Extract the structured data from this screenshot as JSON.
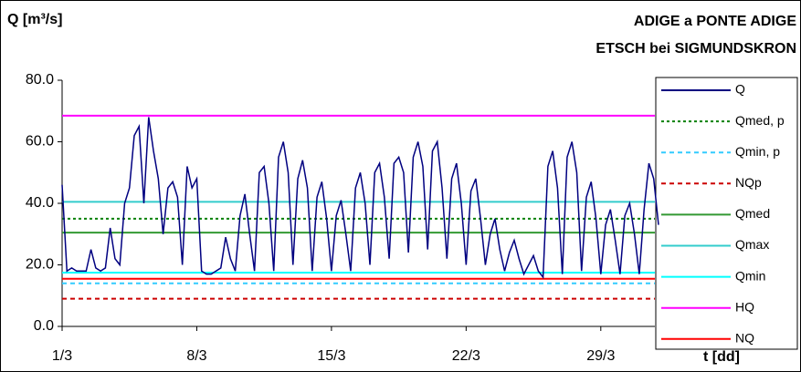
{
  "chart_data": {
    "type": "line",
    "title": "Q [m³/s]",
    "subtitle": [
      "ADIGE a PONTE ADIGE",
      "ETSCH bei SIGMUNDSKRON"
    ],
    "x_label": "t [dd]",
    "xlim": [
      1,
      32
    ],
    "xticks": [
      {
        "value": 1,
        "label": "1/3"
      },
      {
        "value": 8,
        "label": "8/3"
      },
      {
        "value": 15,
        "label": "15/3"
      },
      {
        "value": 22,
        "label": "22/3"
      },
      {
        "value": 29,
        "label": "29/3"
      }
    ],
    "ylim": [
      0,
      80
    ],
    "yticks": [
      {
        "value": 0,
        "label": "0.0"
      },
      {
        "value": 20,
        "label": "20.0"
      },
      {
        "value": 40,
        "label": "40.0"
      },
      {
        "value": 60,
        "label": "60.0"
      },
      {
        "value": 80,
        "label": "80.0"
      }
    ],
    "grid": false,
    "x": [
      1,
      1.25,
      1.5,
      1.75,
      2,
      2.25,
      2.5,
      2.75,
      3,
      3.25,
      3.5,
      3.75,
      4,
      4.25,
      4.5,
      4.75,
      5,
      5.25,
      5.5,
      5.75,
      6,
      6.25,
      6.5,
      6.75,
      7,
      7.25,
      7.5,
      7.75,
      8,
      8.25,
      8.5,
      8.75,
      9,
      9.25,
      9.5,
      9.75,
      10,
      10.25,
      10.5,
      10.75,
      11,
      11.25,
      11.5,
      11.75,
      12,
      12.25,
      12.5,
      12.75,
      13,
      13.25,
      13.5,
      13.75,
      14,
      14.25,
      14.5,
      14.75,
      15,
      15.25,
      15.5,
      15.75,
      16,
      16.25,
      16.5,
      16.75,
      17,
      17.25,
      17.5,
      17.75,
      18,
      18.25,
      18.5,
      18.75,
      19,
      19.25,
      19.5,
      19.75,
      20,
      20.25,
      20.5,
      20.75,
      21,
      21.25,
      21.5,
      21.75,
      22,
      22.25,
      22.5,
      22.75,
      23,
      23.25,
      23.5,
      23.75,
      24,
      24.25,
      24.5,
      24.75,
      25,
      25.25,
      25.5,
      25.75,
      26,
      26.25,
      26.5,
      26.75,
      27,
      27.25,
      27.5,
      27.75,
      28,
      28.25,
      28.5,
      28.75,
      29,
      29.25,
      29.5,
      29.75,
      30,
      30.25,
      30.5,
      30.75,
      31,
      31.25,
      31.5,
      31.75,
      32
    ],
    "series": [
      {
        "name": "Q",
        "color": "#000080",
        "values": [
          46,
          18,
          19,
          18,
          18,
          18,
          25,
          19,
          18,
          19,
          32,
          22,
          20,
          40,
          45,
          62,
          65,
          40,
          68,
          57,
          48,
          30,
          45,
          47,
          42,
          20,
          52,
          45,
          48,
          18,
          17,
          17,
          18,
          19,
          29,
          22,
          18,
          36,
          43,
          30,
          18,
          50,
          52,
          40,
          18,
          55,
          60,
          50,
          20,
          48,
          54,
          45,
          18,
          42,
          47,
          35,
          18,
          36,
          41,
          30,
          18,
          45,
          50,
          40,
          20,
          50,
          53,
          42,
          22,
          53,
          55,
          50,
          24,
          55,
          60,
          52,
          25,
          57,
          60,
          45,
          22,
          48,
          53,
          40,
          20,
          44,
          48,
          35,
          20,
          30,
          35,
          25,
          18,
          24,
          28,
          22,
          17,
          20,
          23,
          18,
          16,
          52,
          57,
          45,
          17,
          55,
          60,
          50,
          18,
          42,
          47,
          35,
          17,
          33,
          38,
          28,
          17,
          36,
          40,
          30,
          17,
          38,
          53,
          48,
          33
        ]
      }
    ],
    "reference_lines": [
      {
        "name": "Qmed, p",
        "color": "#008000",
        "value": 35,
        "dash": "dotted"
      },
      {
        "name": "Qmin, p",
        "color": "#33ccff",
        "value": 14,
        "dash": "dashed"
      },
      {
        "name": "NQp",
        "color": "#cc0000",
        "value": 9,
        "dash": "dashed"
      },
      {
        "name": "Qmed",
        "color": "#339933",
        "value": 30.5,
        "dash": "solid"
      },
      {
        "name": "Qmax",
        "color": "#33cccc",
        "value": 40.5,
        "dash": "solid"
      },
      {
        "name": "Qmin",
        "color": "#00ffff",
        "value": 17.5,
        "dash": "solid"
      },
      {
        "name": "HQ",
        "color": "#ff00ff",
        "value": 68.5,
        "dash": "solid"
      },
      {
        "name": "NQ",
        "color": "#ff0000",
        "value": 15.5,
        "dash": "solid"
      }
    ]
  }
}
